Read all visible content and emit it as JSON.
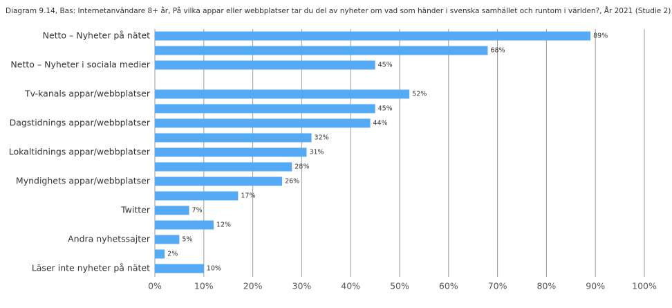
{
  "chart_data": {
    "type": "bar",
    "orientation": "horizontal",
    "title": "Diagram 9.14, Bas: Internetanvändare 8+ år, På vilka appar eller webbplatser tar du del av nyheter om vad som händer i svenska samhället och runtom i världen?, År 2021 (Studie 2)",
    "categories": [
      "Netto – Nyheter på nätet",
      null,
      "Netto – Nyheter i sociala medier",
      "Tv-kanals appar/webbplatser",
      null,
      "Dagstidnings appar/webbplatser",
      null,
      "Lokaltidnings appar/webbplatser",
      null,
      "Myndighets appar/webbplatser",
      null,
      "Twitter",
      null,
      "Andra nyhetssajter",
      null,
      "Läser inte nyheter på nätet"
    ],
    "values": [
      89,
      68,
      45,
      52,
      45,
      44,
      32,
      31,
      28,
      26,
      17,
      7,
      12,
      5,
      2,
      10
    ],
    "value_labels": [
      "89%",
      "68%",
      "45%",
      "52%",
      "45%",
      "44%",
      "32%",
      "31%",
      "28%",
      "26%",
      "17%",
      "7%",
      "12%",
      "5%",
      "2%",
      "10%"
    ],
    "color": "#55aaf5",
    "xlim": [
      0,
      100
    ],
    "xticks": [
      {
        "value": 0,
        "label": "0%"
      },
      {
        "value": 10,
        "label": "10%"
      },
      {
        "value": 20,
        "label": "20%"
      },
      {
        "value": 30,
        "label": "30%"
      },
      {
        "value": 40,
        "label": "40%"
      },
      {
        "value": 50,
        "label": "50%"
      },
      {
        "value": 60,
        "label": "60%"
      },
      {
        "value": 70,
        "label": "70%"
      },
      {
        "value": 80,
        "label": "80%"
      },
      {
        "value": 90,
        "label": "90%"
      },
      {
        "value": 100,
        "label": "100%"
      }
    ],
    "grid": true
  }
}
